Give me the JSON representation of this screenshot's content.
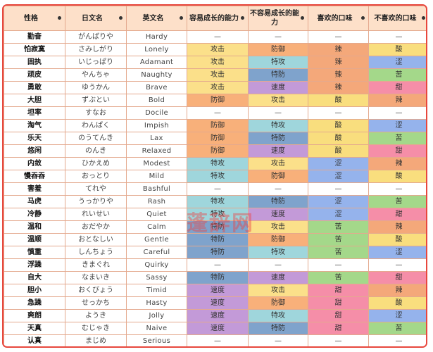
{
  "headers": [
    "性格",
    "日文名",
    "英文名",
    "容易成长的能力",
    "不容易成长的能力",
    "喜欢的口味",
    "不喜欢的口味"
  ],
  "sort_icon": "sort-dot-icon",
  "colors": {
    "攻击": "#fbe08a",
    "防御": "#f8b07a",
    "特攻": "#9fd6dc",
    "特防": "#7fa3cc",
    "速度": "#c39ad8",
    "辣": "#f4a87a",
    "酸": "#f9de7e",
    "涩": "#95b3ec",
    "苦": "#a4d88a",
    "甜": "#f58ea8",
    "—": "#ffffff",
    "header_bg": "#fde0c9",
    "outer_border": "#e8473d",
    "cell_border": "#e4a98e"
  },
  "rows": [
    {
      "name": "勤奋",
      "jp": "がんばりや",
      "en": "Hardy",
      "up": "—",
      "down": "—",
      "like": "—",
      "dislike": "—"
    },
    {
      "name": "怕寂寞",
      "jp": "さみしがり",
      "en": "Lonely",
      "up": "攻击",
      "down": "防御",
      "like": "辣",
      "dislike": "酸"
    },
    {
      "name": "固执",
      "jp": "いじっぱり",
      "en": "Adamant",
      "up": "攻击",
      "down": "特攻",
      "like": "辣",
      "dislike": "涩"
    },
    {
      "name": "顽皮",
      "jp": "やんちゃ",
      "en": "Naughty",
      "up": "攻击",
      "down": "特防",
      "like": "辣",
      "dislike": "苦"
    },
    {
      "name": "勇敢",
      "jp": "ゆうかん",
      "en": "Brave",
      "up": "攻击",
      "down": "速度",
      "like": "辣",
      "dislike": "甜"
    },
    {
      "name": "大胆",
      "jp": "ずぶとい",
      "en": "Bold",
      "up": "防御",
      "down": "攻击",
      "like": "酸",
      "dislike": "辣"
    },
    {
      "name": "坦率",
      "jp": "すなお",
      "en": "Docile",
      "up": "—",
      "down": "—",
      "like": "—",
      "dislike": "—"
    },
    {
      "name": "淘气",
      "jp": "わんぱく",
      "en": "Impish",
      "up": "防御",
      "down": "特攻",
      "like": "酸",
      "dislike": "涩"
    },
    {
      "name": "乐天",
      "jp": "のうてんき",
      "en": "Lax",
      "up": "防御",
      "down": "特防",
      "like": "酸",
      "dislike": "苦"
    },
    {
      "name": "悠闲",
      "jp": "のんき",
      "en": "Relaxed",
      "up": "防御",
      "down": "速度",
      "like": "酸",
      "dislike": "甜"
    },
    {
      "name": "内敛",
      "jp": "ひかえめ",
      "en": "Modest",
      "up": "特攻",
      "down": "攻击",
      "like": "涩",
      "dislike": "辣"
    },
    {
      "name": "慢吞吞",
      "jp": "おっとり",
      "en": "Mild",
      "up": "特攻",
      "down": "防御",
      "like": "涩",
      "dislike": "酸"
    },
    {
      "name": "害羞",
      "jp": "てれや",
      "en": "Bashful",
      "up": "—",
      "down": "—",
      "like": "—",
      "dislike": "—"
    },
    {
      "name": "马虎",
      "jp": "うっかりや",
      "en": "Rash",
      "up": "特攻",
      "down": "特防",
      "like": "涩",
      "dislike": "苦"
    },
    {
      "name": "冷静",
      "jp": "れいせい",
      "en": "Quiet",
      "up": "特攻",
      "down": "速度",
      "like": "涩",
      "dislike": "甜"
    },
    {
      "name": "温和",
      "jp": "おだやか",
      "en": "Calm",
      "up": "特防",
      "down": "攻击",
      "like": "苦",
      "dislike": "辣"
    },
    {
      "name": "温顺",
      "jp": "おとなしい",
      "en": "Gentle",
      "up": "特防",
      "down": "防御",
      "like": "苦",
      "dislike": "酸"
    },
    {
      "name": "慎重",
      "jp": "しんちょう",
      "en": "Careful",
      "up": "特防",
      "down": "特攻",
      "like": "苦",
      "dislike": "涩"
    },
    {
      "name": "浮躁",
      "jp": "きまぐれ",
      "en": "Quirky",
      "up": "—",
      "down": "—",
      "like": "—",
      "dislike": "—"
    },
    {
      "name": "自大",
      "jp": "なまいき",
      "en": "Sassy",
      "up": "特防",
      "down": "速度",
      "like": "苦",
      "dislike": "甜"
    },
    {
      "name": "胆小",
      "jp": "おくびょう",
      "en": "Timid",
      "up": "速度",
      "down": "攻击",
      "like": "甜",
      "dislike": "辣"
    },
    {
      "name": "急躁",
      "jp": "せっかち",
      "en": "Hasty",
      "up": "速度",
      "down": "防御",
      "like": "甜",
      "dislike": "酸"
    },
    {
      "name": "爽朗",
      "jp": "ようき",
      "en": "Jolly",
      "up": "速度",
      "down": "特攻",
      "like": "甜",
      "dislike": "涩"
    },
    {
      "name": "天真",
      "jp": "むじゃき",
      "en": "Naive",
      "up": "速度",
      "down": "特防",
      "like": "甜",
      "dislike": "苦"
    },
    {
      "name": "认真",
      "jp": "まじめ",
      "en": "Serious",
      "up": "—",
      "down": "—",
      "like": "—",
      "dislike": "—"
    }
  ],
  "watermark": "蓬辞网"
}
